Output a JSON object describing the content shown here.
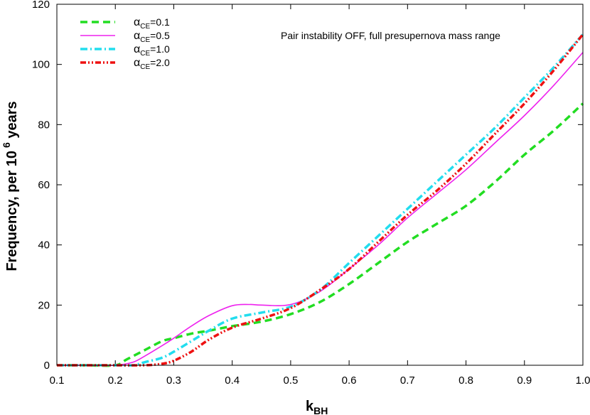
{
  "chart_data": {
    "type": "line",
    "annotation": "Pair instability OFF, full presupernova mass range",
    "xlabel": {
      "main": "k",
      "sub": "BH"
    },
    "ylabel": {
      "main": "Frequency, per 10",
      "sup": "6",
      "tail": " years"
    },
    "xlim": [
      0.1,
      1.0
    ],
    "ylim": [
      0,
      120
    ],
    "xticks": [
      0.1,
      0.2,
      0.3,
      0.4,
      0.5,
      0.6,
      0.7,
      0.8,
      0.9,
      1.0
    ],
    "xtick_labels": [
      "0.1",
      "0.2",
      "0.3",
      "0.4",
      "0.5",
      "0.6",
      "0.7",
      "0.8",
      "0.9",
      "1.0"
    ],
    "yticks": [
      0,
      20,
      40,
      60,
      80,
      100,
      120
    ],
    "ytick_labels": [
      "0",
      "20",
      "40",
      "60",
      "80",
      "100",
      "120"
    ],
    "grid": false,
    "legend_position": "top-left",
    "series": [
      {
        "name": "α_CE=0.1",
        "label_main": "α",
        "label_sub": "CE",
        "label_tail": "=0.1",
        "color": "#22dd22",
        "dash": "10,6",
        "width": 3.5,
        "x": [
          0.1,
          0.15,
          0.2,
          0.22,
          0.25,
          0.28,
          0.3,
          0.33,
          0.36,
          0.4,
          0.45,
          0.5,
          0.55,
          0.6,
          0.65,
          0.7,
          0.75,
          0.8,
          0.85,
          0.9,
          0.95,
          1.0
        ],
        "y": [
          0,
          0,
          0,
          2,
          5,
          8,
          9,
          10.5,
          11.5,
          13,
          14.5,
          17,
          21,
          27,
          34,
          41,
          47,
          53,
          61,
          70,
          78,
          87
        ]
      },
      {
        "name": "α_CE=0.5",
        "label_main": "α",
        "label_sub": "CE",
        "label_tail": "=0.5",
        "color": "#ee22ee",
        "dash": "",
        "width": 1.6,
        "x": [
          0.1,
          0.15,
          0.2,
          0.23,
          0.25,
          0.28,
          0.3,
          0.33,
          0.36,
          0.4,
          0.43,
          0.45,
          0.5,
          0.55,
          0.6,
          0.65,
          0.7,
          0.75,
          0.8,
          0.85,
          0.9,
          0.95,
          1.0
        ],
        "y": [
          0,
          0,
          0,
          1,
          3,
          6.5,
          9,
          13,
          16.5,
          19.8,
          20.2,
          20,
          20.2,
          24.5,
          32,
          40,
          49,
          57,
          65,
          74,
          83,
          93,
          104
        ]
      },
      {
        "name": "α_CE=1.0",
        "label_main": "α",
        "label_sub": "CE",
        "label_tail": "=1.0",
        "color": "#22ddee",
        "dash": "10,4,2,4",
        "width": 3.5,
        "x": [
          0.1,
          0.15,
          0.2,
          0.23,
          0.25,
          0.28,
          0.3,
          0.33,
          0.36,
          0.4,
          0.45,
          0.5,
          0.55,
          0.6,
          0.65,
          0.7,
          0.75,
          0.8,
          0.85,
          0.9,
          0.95,
          1.0
        ],
        "y": [
          0,
          0,
          0,
          0,
          1,
          2.5,
          4.5,
          8,
          11.5,
          15.5,
          17.5,
          19.5,
          25,
          34,
          43,
          52,
          61,
          70,
          79,
          89,
          99,
          110
        ]
      },
      {
        "name": "α_CE=2.0",
        "label_main": "α",
        "label_sub": "CE",
        "label_tail": "=2.0",
        "color": "#ee1111",
        "dash": "8,3,2,3,2,3",
        "width": 3.5,
        "x": [
          0.1,
          0.15,
          0.2,
          0.25,
          0.28,
          0.3,
          0.33,
          0.36,
          0.4,
          0.45,
          0.5,
          0.55,
          0.6,
          0.65,
          0.7,
          0.75,
          0.8,
          0.85,
          0.9,
          0.95,
          1.0
        ],
        "y": [
          0,
          0,
          0,
          0,
          0.5,
          1.5,
          4.5,
          8.5,
          12.5,
          15.5,
          19,
          25,
          32,
          41,
          50,
          58,
          67,
          77,
          87,
          98,
          110
        ]
      }
    ]
  }
}
